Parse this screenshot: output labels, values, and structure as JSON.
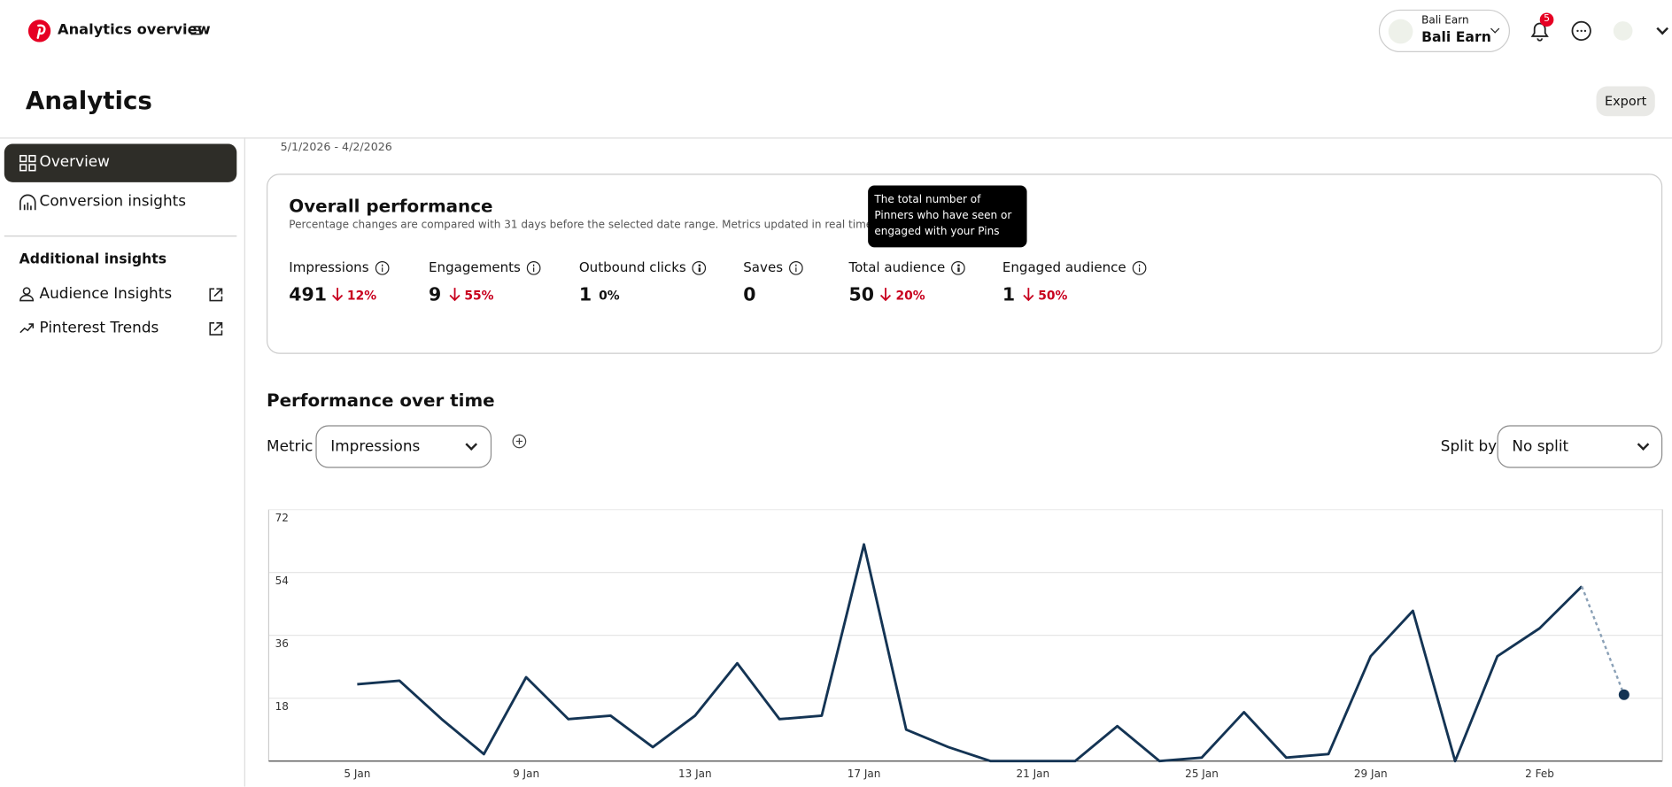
{
  "header": {
    "title": "Analytics overview",
    "account": {
      "label": "Bali Earn",
      "name": "Bali Earn"
    },
    "notifications": 5
  },
  "page_title": "Analytics",
  "export": "Export",
  "sidebar": {
    "items": [
      "Overview",
      "Conversion insights"
    ],
    "section": "Additional insights",
    "links": [
      "Audience Insights",
      "Pinterest Trends"
    ]
  },
  "date_range": "5/1/2026 - 4/2/2026",
  "overall": {
    "title": "Overall performance",
    "note": "Percentage changes are compared with 31 days before the selected date range. Metrics updated in real time except for",
    "metrics": [
      {
        "label": "Impressions",
        "value": 491,
        "change": "12%",
        "direction": "down"
      },
      {
        "label": "Engagements",
        "value": 9,
        "change": "55%",
        "direction": "down"
      },
      {
        "label": "Outbound clicks",
        "value": 1,
        "change": "0%"
      },
      {
        "label": "Saves",
        "value": 0
      },
      {
        "label": "Total audience",
        "value": 50,
        "change": "20%",
        "direction": "down"
      },
      {
        "label": "Engaged audience",
        "value": 1,
        "change": "50%",
        "direction": "down"
      }
    ]
  },
  "tooltip": "The total number of Pinners who have seen or engaged with your Pins",
  "performance": {
    "title": "Performance over time",
    "metric_label": "Metric",
    "metric": "Impressions",
    "split_label": "Split by",
    "split": "No split"
  },
  "chart_data": {
    "type": "line",
    "categories": [
      "5 Jan",
      null,
      null,
      null,
      "9 Jan",
      null,
      null,
      null,
      "13 Jan",
      null,
      null,
      null,
      "17 Jan",
      null,
      null,
      null,
      "21 Jan",
      null,
      null,
      null,
      "25 Jan",
      null,
      null,
      null,
      "29 Jan",
      null,
      null,
      null,
      "2 Feb",
      null,
      null
    ],
    "values": [
      22,
      23,
      12,
      2,
      24,
      12,
      13,
      4,
      13,
      28,
      12,
      13,
      62,
      9,
      4,
      0,
      0,
      0,
      10,
      0,
      1,
      14,
      1,
      2,
      30,
      43,
      0,
      30,
      38,
      50,
      19
    ],
    "color": "#143454",
    "ylim": [
      0,
      72
    ],
    "yticks": [
      18,
      36,
      54,
      72
    ],
    "grid": true
  }
}
